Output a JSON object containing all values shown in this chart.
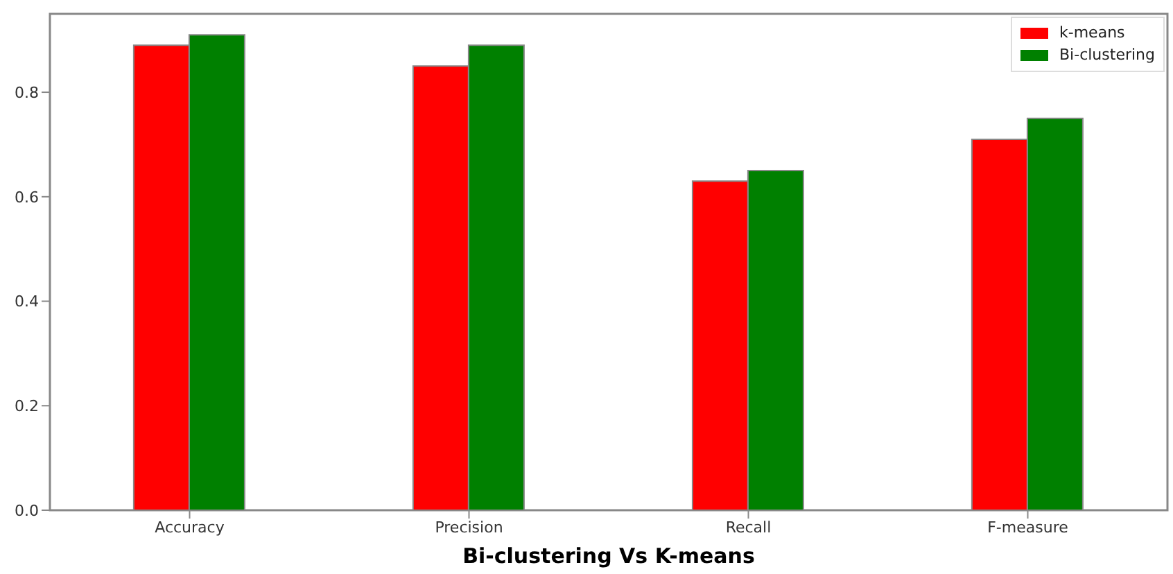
{
  "chart_data": {
    "type": "bar",
    "xlabel": "Bi-clustering Vs K-means",
    "categories": [
      "Accuracy",
      "Precision",
      "Recall",
      "F-measure"
    ],
    "series": [
      {
        "name": "k-means",
        "color": "#ff0000",
        "values": [
          0.89,
          0.85,
          0.63,
          0.71
        ]
      },
      {
        "name": "Bi-clustering",
        "color": "#008000",
        "values": [
          0.91,
          0.89,
          0.65,
          0.75
        ]
      }
    ],
    "ylim": [
      0,
      0.95
    ],
    "yticks": [
      {
        "value": 0,
        "label": "0.0"
      },
      {
        "value": 0.2,
        "label": "0.2"
      },
      {
        "value": 0.4,
        "label": "0.4"
      },
      {
        "value": 0.6,
        "label": "0.6"
      },
      {
        "value": 0.8,
        "label": "0.8"
      }
    ],
    "grid": false,
    "legend": "top right"
  }
}
